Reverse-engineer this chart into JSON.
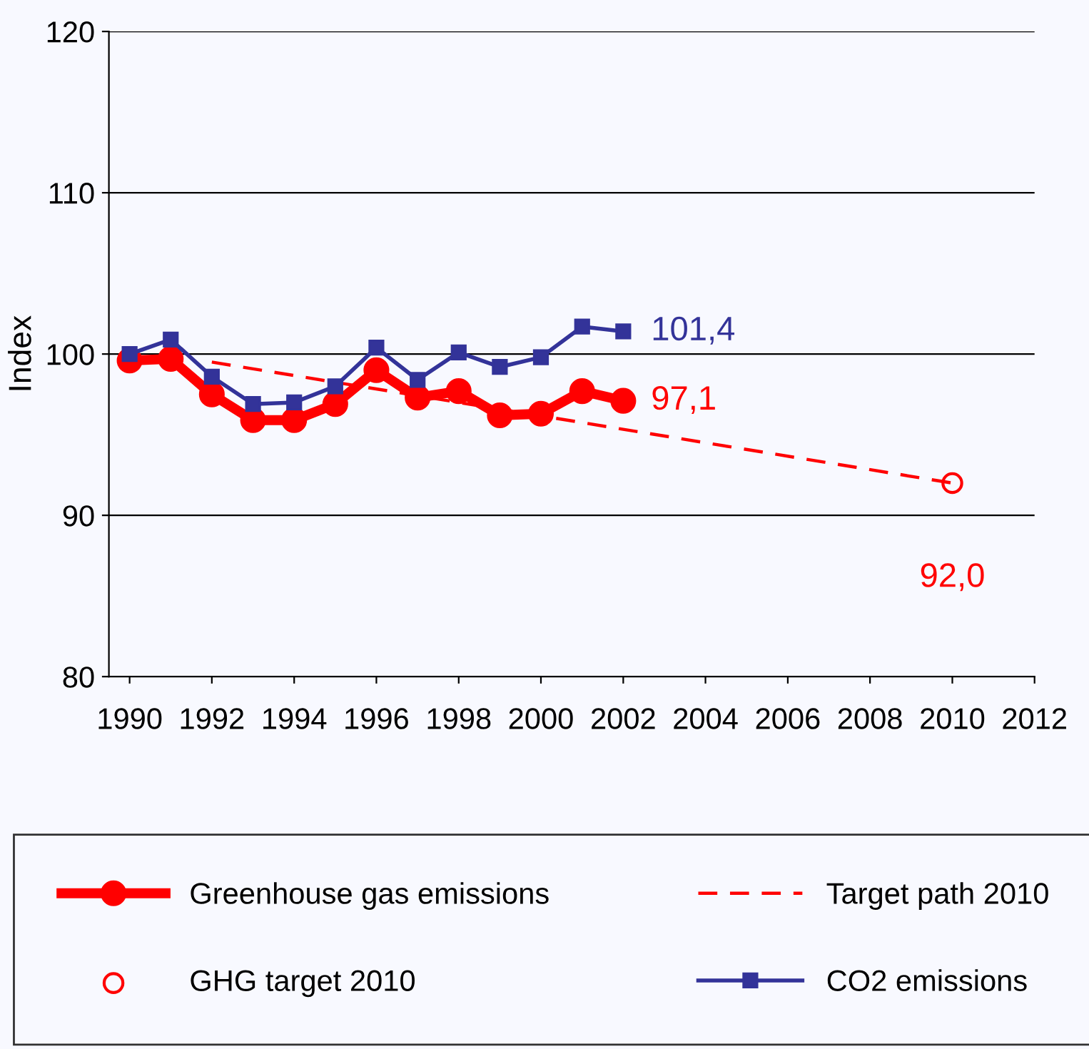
{
  "chart_data": {
    "type": "line",
    "ylabel": "Index",
    "x": [
      "1990",
      "1991",
      "1992",
      "1993",
      "1994",
      "1995",
      "1996",
      "1997",
      "1998",
      "1999",
      "2000",
      "2001",
      "2002"
    ],
    "series": [
      {
        "name": "Greenhouse gas emissions",
        "color": "#ff0000",
        "values": [
          99.6,
          99.7,
          97.5,
          95.9,
          95.9,
          96.9,
          99.0,
          97.3,
          97.7,
          96.2,
          96.3,
          97.7,
          97.1
        ],
        "marker": "circle",
        "line_style": "solid"
      },
      {
        "name": "Target path 2010",
        "color": "#ff0000",
        "x": [
          "1992",
          "2010"
        ],
        "values": [
          99.5,
          92.0
        ],
        "marker": "none",
        "line_style": "dashed"
      },
      {
        "name": "GHG target 2010",
        "type": "scatter",
        "color": "#ff0000",
        "x": [
          "2010"
        ],
        "values": [
          92.0
        ],
        "marker": "circle"
      },
      {
        "name": "CO2 emissions",
        "color": "#333399",
        "values": [
          100.0,
          100.9,
          98.6,
          96.9,
          97.0,
          98.0,
          100.4,
          98.4,
          100.1,
          99.2,
          99.8,
          101.7,
          101.4
        ],
        "marker": "square",
        "line_style": "solid"
      }
    ],
    "annotations": [
      {
        "text": "97,1",
        "x": "2002",
        "y": 97.1
      },
      {
        "text": "101,4",
        "x": "2002",
        "y": 101.4
      },
      {
        "text": "92,0",
        "x": "2010",
        "y": 92.0
      }
    ],
    "xlim": [
      "1989-07",
      "2012"
    ],
    "xticks": [
      "1990",
      "1992",
      "1994",
      "1996",
      "1998",
      "2000",
      "2002",
      "2004",
      "2006",
      "2008",
      "2010",
      "2012"
    ],
    "ylim": [
      80,
      120
    ],
    "yticks": [
      80,
      90,
      100,
      110,
      120
    ],
    "grid": "y",
    "legend": "bottom"
  }
}
